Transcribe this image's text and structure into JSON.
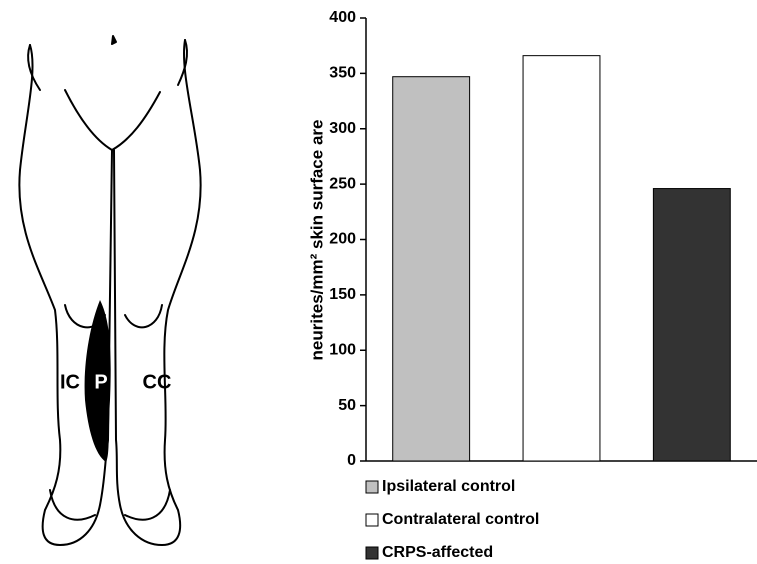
{
  "figure": {
    "labels": [
      "IC",
      "P",
      "CC"
    ]
  },
  "chart_data": {
    "type": "bar",
    "y_label": "neurites/mm² skin surface are",
    "categories": [
      null,
      null,
      null
    ],
    "values": [
      347,
      366,
      246
    ],
    "colors": [
      "#c0c0c0",
      "#ffffff",
      "#333333"
    ],
    "legend": [
      "Ipsilateral control",
      "Contralateral control",
      "CRPS-affected"
    ],
    "ylim": [
      0,
      400
    ],
    "yticks": [
      0,
      50,
      100,
      150,
      200,
      250,
      300,
      350,
      400
    ]
  }
}
